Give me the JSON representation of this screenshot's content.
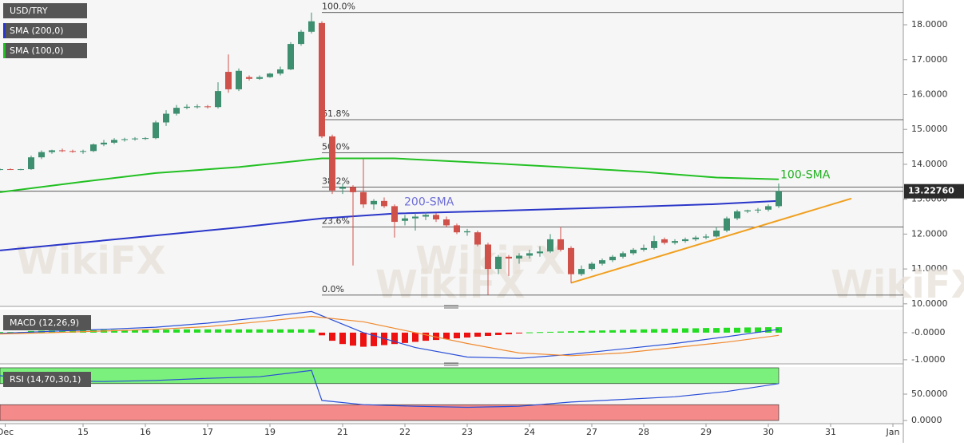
{
  "chart_data": [
    {
      "type": "candlestick",
      "title": "USD/TRY",
      "watermark": "WikiFX",
      "xlim": [
        0,
        87
      ],
      "ylim": [
        9.95,
        18.71
      ],
      "yticks": [
        {
          "value": 10,
          "label": "10.0000"
        },
        {
          "value": 11,
          "label": "11.0000"
        },
        {
          "value": 12,
          "label": "12.0000"
        },
        {
          "value": 13,
          "label": "13.0000"
        },
        {
          "value": 14,
          "label": "14.0000"
        },
        {
          "value": 15,
          "label": "15.0000"
        },
        {
          "value": 16,
          "label": "16.0000"
        },
        {
          "value": 17,
          "label": "17.0000"
        },
        {
          "value": 18,
          "label": "18.0000"
        }
      ],
      "up_color": "#3d8f70",
      "down_color": "#d0504a",
      "x": [
        0,
        1,
        2,
        3,
        4,
        5,
        6,
        7,
        8,
        9,
        10,
        11,
        12,
        13,
        14,
        15,
        16,
        17,
        18,
        19,
        20,
        21,
        22,
        23,
        24,
        25,
        26,
        27,
        28,
        29,
        30,
        31,
        32,
        33,
        34,
        35,
        36,
        37,
        38,
        39,
        40,
        41,
        42,
        43,
        44,
        45,
        46,
        47,
        48,
        49,
        50,
        51,
        52,
        53,
        54,
        55,
        56,
        57,
        58,
        59,
        60,
        61,
        62,
        63,
        64,
        65,
        66,
        67,
        68,
        69,
        70,
        71,
        72,
        73,
        74,
        75
      ],
      "ohlc": [
        [
          13.85,
          13.88,
          13.83,
          13.86
        ],
        [
          13.86,
          13.88,
          13.84,
          13.85
        ],
        [
          13.85,
          13.87,
          13.83,
          13.86
        ],
        [
          13.86,
          14.25,
          13.84,
          14.2
        ],
        [
          14.2,
          14.4,
          14.15,
          14.35
        ],
        [
          14.35,
          14.42,
          14.3,
          14.4
        ],
        [
          14.4,
          14.45,
          14.35,
          14.38
        ],
        [
          14.38,
          14.42,
          14.33,
          14.36
        ],
        [
          14.36,
          14.42,
          14.3,
          14.38
        ],
        [
          14.38,
          14.6,
          14.35,
          14.57
        ],
        [
          14.57,
          14.7,
          14.52,
          14.62
        ],
        [
          14.62,
          14.75,
          14.58,
          14.7
        ],
        [
          14.7,
          14.76,
          14.65,
          14.72
        ],
        [
          14.72,
          14.78,
          14.68,
          14.74
        ],
        [
          14.74,
          14.78,
          14.7,
          14.75
        ],
        [
          14.75,
          15.25,
          14.72,
          15.2
        ],
        [
          15.2,
          15.55,
          15.1,
          15.45
        ],
        [
          15.45,
          15.7,
          15.4,
          15.62
        ],
        [
          15.62,
          15.72,
          15.58,
          15.65
        ],
        [
          15.65,
          15.72,
          15.6,
          15.66
        ],
        [
          15.66,
          15.7,
          15.6,
          15.64
        ],
        [
          15.64,
          16.35,
          15.6,
          16.1
        ],
        [
          16.65,
          17.15,
          16.05,
          16.15
        ],
        [
          16.15,
          16.75,
          16.1,
          16.68
        ],
        [
          16.5,
          16.55,
          16.4,
          16.45
        ],
        [
          16.45,
          16.55,
          16.42,
          16.5
        ],
        [
          16.5,
          16.62,
          16.48,
          16.6
        ],
        [
          16.6,
          16.8,
          16.55,
          16.72
        ],
        [
          16.72,
          17.5,
          16.7,
          17.45
        ],
        [
          17.45,
          17.85,
          17.4,
          17.8
        ],
        [
          17.8,
          18.35,
          17.75,
          18.1
        ],
        [
          18.05,
          18.1,
          14.75,
          14.8
        ],
        [
          14.8,
          14.85,
          13.15,
          13.25
        ],
        [
          13.3,
          13.45,
          13.15,
          13.35
        ],
        [
          13.35,
          13.4,
          11.1,
          13.2
        ],
        [
          13.2,
          14.15,
          12.75,
          12.85
        ],
        [
          12.85,
          13.0,
          12.7,
          12.95
        ],
        [
          12.95,
          13.05,
          12.75,
          12.8
        ],
        [
          12.8,
          12.85,
          11.9,
          12.35
        ],
        [
          12.38,
          12.55,
          12.25,
          12.45
        ],
        [
          12.45,
          12.6,
          12.1,
          12.5
        ],
        [
          12.5,
          12.62,
          12.4,
          12.55
        ],
        [
          12.55,
          12.6,
          12.35,
          12.42
        ],
        [
          12.42,
          12.5,
          12.2,
          12.25
        ],
        [
          12.25,
          12.3,
          12.0,
          12.05
        ],
        [
          12.05,
          12.15,
          11.95,
          12.08
        ],
        [
          12.05,
          12.1,
          11.65,
          11.7
        ],
        [
          11.7,
          11.75,
          10.25,
          11.0
        ],
        [
          11.0,
          11.4,
          10.85,
          11.35
        ],
        [
          11.35,
          11.4,
          10.8,
          11.3
        ],
        [
          11.3,
          11.45,
          11.15,
          11.38
        ],
        [
          11.38,
          11.55,
          11.3,
          11.45
        ],
        [
          11.45,
          11.65,
          11.35,
          11.5
        ],
        [
          11.5,
          12.0,
          11.45,
          11.85
        ],
        [
          11.85,
          12.2,
          11.5,
          11.55
        ],
        [
          11.6,
          11.65,
          10.6,
          10.85
        ],
        [
          10.85,
          11.1,
          10.8,
          11.0
        ],
        [
          11.0,
          11.2,
          10.95,
          11.15
        ],
        [
          11.15,
          11.3,
          11.1,
          11.25
        ],
        [
          11.25,
          11.4,
          11.2,
          11.35
        ],
        [
          11.35,
          11.5,
          11.3,
          11.45
        ],
        [
          11.45,
          11.6,
          11.4,
          11.55
        ],
        [
          11.55,
          11.7,
          11.5,
          11.6
        ],
        [
          11.6,
          11.95,
          11.55,
          11.8
        ],
        [
          11.85,
          11.9,
          11.7,
          11.75
        ],
        [
          11.75,
          11.85,
          11.7,
          11.8
        ],
        [
          11.8,
          11.9,
          11.75,
          11.85
        ],
        [
          11.85,
          11.95,
          11.8,
          11.9
        ],
        [
          11.9,
          12.0,
          11.85,
          11.93
        ],
        [
          11.93,
          12.2,
          11.9,
          12.1
        ],
        [
          12.1,
          12.5,
          12.05,
          12.45
        ],
        [
          12.45,
          12.7,
          12.4,
          12.65
        ],
        [
          12.65,
          12.7,
          12.6,
          12.68
        ],
        [
          12.68,
          12.75,
          12.6,
          12.7
        ],
        [
          12.7,
          12.85,
          12.65,
          12.8
        ],
        [
          12.8,
          13.45,
          12.75,
          13.2276
        ]
      ],
      "series": [
        {
          "name": "SMA (200,0)",
          "label": "200-SMA",
          "color": "#2a36c8",
          "label_color": "#6f6fd8",
          "x": [
            0,
            8,
            15,
            23,
            31,
            38,
            46,
            54,
            62,
            69,
            75
          ],
          "values": [
            11.53,
            11.76,
            11.96,
            12.19,
            12.45,
            12.59,
            12.65,
            12.72,
            12.79,
            12.86,
            12.95
          ]
        },
        {
          "name": "SMA (100,0)",
          "label": "100-SMA",
          "color": "#22c022",
          "label_color": "#22b022",
          "x": [
            0,
            8,
            15,
            23,
            31,
            38,
            46,
            54,
            62,
            69,
            75
          ],
          "values": [
            13.2,
            13.5,
            13.75,
            13.92,
            14.17,
            14.17,
            14.05,
            13.92,
            13.78,
            13.62,
            13.57
          ]
        }
      ],
      "trendline": {
        "color": "#f0a020",
        "x": [
          55,
          82
        ],
        "values": [
          10.6,
          13.02
        ]
      },
      "fib_x": 31,
      "fib_levels": [
        {
          "value": 18.35,
          "label": "100.0%"
        },
        {
          "value": 15.28,
          "label": "61.8%"
        },
        {
          "value": 14.33,
          "label": "50.0%"
        },
        {
          "value": 13.35,
          "label": "38.2%"
        },
        {
          "value": 12.2,
          "label": "23.6%"
        },
        {
          "value": 10.25,
          "label": "0.0%"
        }
      ],
      "last_price": {
        "value": 13.2276,
        "label": "13.22760"
      }
    },
    {
      "type": "macd",
      "title": "MACD (12,26,9)",
      "xlim": [
        0,
        87
      ],
      "ylim": [
        -1.12,
        0.85
      ],
      "yticks": [
        {
          "value": 0,
          "label": "-0.0000"
        },
        {
          "value": -1,
          "label": "-1.0000"
        }
      ],
      "up_color": "#22dd22",
      "down_color": "#ee1111",
      "x": [
        0,
        1,
        2,
        3,
        4,
        5,
        6,
        7,
        8,
        9,
        10,
        11,
        12,
        13,
        14,
        15,
        16,
        17,
        18,
        19,
        20,
        21,
        22,
        23,
        24,
        25,
        26,
        27,
        28,
        29,
        30,
        31,
        32,
        33,
        34,
        35,
        36,
        37,
        38,
        39,
        40,
        41,
        42,
        43,
        44,
        45,
        46,
        47,
        48,
        49,
        50,
        51,
        52,
        53,
        54,
        55,
        56,
        57,
        58,
        59,
        60,
        61,
        62,
        63,
        64,
        65,
        66,
        67,
        68,
        69,
        70,
        71,
        72,
        73,
        74,
        75
      ],
      "histogram": [
        0.02,
        0.02,
        0.02,
        0.06,
        0.07,
        0.08,
        0.08,
        0.08,
        0.09,
        0.09,
        0.1,
        0.1,
        0.1,
        0.1,
        0.1,
        0.11,
        0.11,
        0.12,
        0.12,
        0.12,
        0.12,
        0.12,
        0.12,
        0.12,
        0.12,
        0.12,
        0.12,
        0.12,
        0.12,
        0.12,
        0.12,
        -0.1,
        -0.3,
        -0.42,
        -0.48,
        -0.52,
        -0.5,
        -0.46,
        -0.42,
        -0.38,
        -0.34,
        -0.3,
        -0.27,
        -0.24,
        -0.21,
        -0.18,
        -0.15,
        -0.12,
        -0.09,
        -0.06,
        -0.03,
        0.01,
        0.02,
        0.03,
        0.04,
        0.05,
        0.06,
        0.07,
        0.08,
        0.09,
        0.1,
        0.11,
        0.12,
        0.13,
        0.14,
        0.15,
        0.16,
        0.16,
        0.17,
        0.17,
        0.18,
        0.18,
        0.19,
        0.19,
        0.2,
        0.2
      ],
      "series": [
        {
          "color": "#2a4fd8",
          "x": [
            0,
            5,
            10,
            15,
            20,
            25,
            30,
            35,
            40,
            45,
            50,
            55,
            60,
            65,
            70,
            75
          ],
          "values": [
            -0.03,
            0.05,
            0.12,
            0.2,
            0.35,
            0.55,
            0.78,
            0.0,
            -0.55,
            -0.9,
            -0.95,
            -0.8,
            -0.6,
            -0.4,
            -0.15,
            0.12
          ]
        },
        {
          "color": "#f08a30",
          "x": [
            0,
            5,
            10,
            15,
            20,
            25,
            30,
            35,
            40,
            45,
            50,
            55,
            60,
            65,
            70,
            75
          ],
          "values": [
            -0.05,
            0.0,
            0.06,
            0.12,
            0.22,
            0.4,
            0.6,
            0.4,
            0.0,
            -0.4,
            -0.75,
            -0.85,
            -0.75,
            -0.55,
            -0.35,
            -0.1
          ]
        }
      ]
    },
    {
      "type": "rsi",
      "title": "RSI (14,70,30,1)",
      "xlim": [
        0,
        87
      ],
      "ylim": [
        -4.5,
        101.5
      ],
      "yticks": [
        {
          "value": 50,
          "label": "50.0000"
        },
        {
          "value": 0,
          "label": "0.0000"
        }
      ],
      "zones": [
        {
          "from": 70,
          "to": 100,
          "color": "#7cf07c"
        },
        {
          "from": 0,
          "to": 30,
          "color": "#f58a8a"
        }
      ],
      "series": [
        {
          "color": "#2a4fd8",
          "x": [
            0,
            5,
            10,
            15,
            20,
            25,
            30,
            31,
            35,
            40,
            45,
            50,
            55,
            60,
            65,
            70,
            75
          ],
          "values": [
            85,
            75,
            74,
            76,
            80,
            83,
            95,
            38,
            30,
            27,
            25,
            27,
            35,
            40,
            45,
            55,
            70
          ]
        }
      ],
      "xticks": [
        {
          "value": 0.5,
          "label": "Dec"
        },
        {
          "value": 8,
          "label": "15"
        },
        {
          "value": 14,
          "label": "16"
        },
        {
          "value": 20,
          "label": "17"
        },
        {
          "value": 26,
          "label": "19"
        },
        {
          "value": 33,
          "label": "21"
        },
        {
          "value": 39,
          "label": "22"
        },
        {
          "value": 45,
          "label": "23"
        },
        {
          "value": 51,
          "label": "24"
        },
        {
          "value": 57,
          "label": "27"
        },
        {
          "value": 62,
          "label": "28"
        },
        {
          "value": 68,
          "label": "29"
        },
        {
          "value": 74,
          "label": "30"
        },
        {
          "value": 80,
          "label": "31"
        },
        {
          "value": 86,
          "label": "Jan"
        }
      ]
    }
  ]
}
